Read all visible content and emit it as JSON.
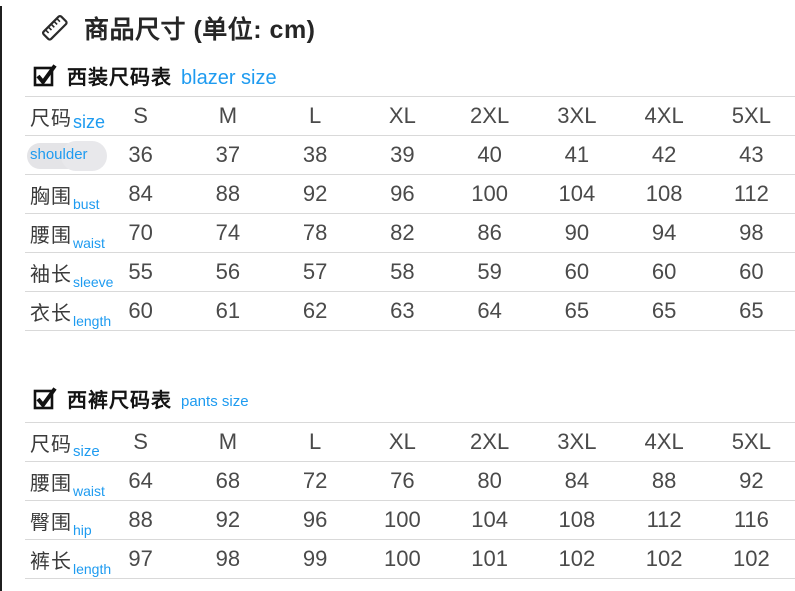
{
  "page": {
    "title": "商品尺寸 (单位: cm)",
    "unit": "cm",
    "colors": {
      "accent_blue": "#1e9bf0",
      "text_dark": "#262626",
      "line_gray": "#d9d9d9"
    }
  },
  "chart_data": [
    {
      "type": "table",
      "title_cn": "西装尺码表",
      "title_en": "blazer size",
      "header": {
        "label_cn": "尺码",
        "label_en": "size"
      },
      "columns": [
        "S",
        "M",
        "L",
        "XL",
        "2XL",
        "3XL",
        "4XL",
        "5XL"
      ],
      "rows": [
        {
          "label_cn": "",
          "label_en": "shoulder",
          "erased_label": true,
          "values": [
            36,
            37,
            38,
            39,
            40,
            41,
            42,
            43
          ]
        },
        {
          "label_cn": "胸围",
          "label_en": "bust",
          "values": [
            84,
            88,
            92,
            96,
            100,
            104,
            108,
            112
          ]
        },
        {
          "label_cn": "腰围",
          "label_en": "waist",
          "values": [
            70,
            74,
            78,
            82,
            86,
            90,
            94,
            98
          ]
        },
        {
          "label_cn": "袖长",
          "label_en": "sleeve",
          "values": [
            55,
            56,
            57,
            58,
            59,
            60,
            60,
            60
          ]
        },
        {
          "label_cn": "衣长",
          "label_en": "length",
          "values": [
            60,
            61,
            62,
            63,
            64,
            65,
            65,
            65
          ]
        }
      ]
    },
    {
      "type": "table",
      "title_cn": "西裤尺码表",
      "title_en": "pants size",
      "header": {
        "label_cn": "尺码",
        "label_en": "size"
      },
      "columns": [
        "S",
        "M",
        "L",
        "XL",
        "2XL",
        "3XL",
        "4XL",
        "5XL"
      ],
      "rows": [
        {
          "label_cn": "腰围",
          "label_en": "waist",
          "values": [
            64,
            68,
            72,
            76,
            80,
            84,
            88,
            92
          ]
        },
        {
          "label_cn": "臀围",
          "label_en": "hip",
          "values": [
            88,
            92,
            96,
            100,
            104,
            108,
            112,
            116
          ]
        },
        {
          "label_cn": "裤长",
          "label_en": "length",
          "values": [
            97,
            98,
            99,
            100,
            101,
            102,
            102,
            102
          ]
        }
      ]
    }
  ]
}
